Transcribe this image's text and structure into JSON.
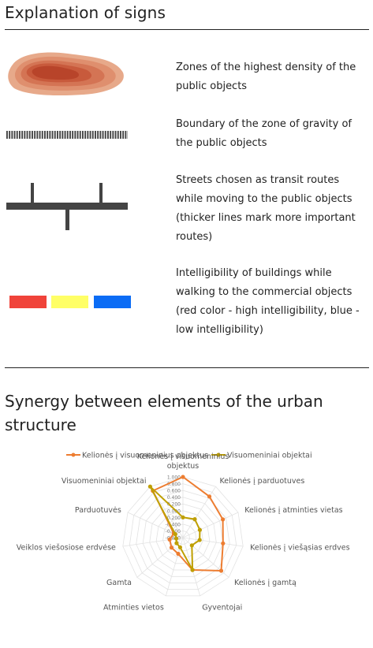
{
  "section1": {
    "title": "Explanation of signs",
    "items": [
      {
        "text": "Zones of the highest density of the public objects"
      },
      {
        "text": "Boundary of the zone of gravity of the public objects"
      },
      {
        "text": "Streets chosen as transit routes while moving to the public objects (thicker lines mark more important routes)"
      },
      {
        "text": "Intelligibility of buildings while walking to the commercial objects (red color - high intelligibility, blue - low intelligibility)"
      }
    ],
    "swatch_colors": [
      "#f0433a",
      "#ffff66",
      "#0b6cf5"
    ],
    "density_colors": [
      "#e7a98a",
      "#df8f6e",
      "#d47454",
      "#c85a3c",
      "#b8442a"
    ]
  },
  "section2": {
    "title": "Synergy between elements of the urban structure"
  },
  "chart_data": {
    "type": "radar",
    "categories": [
      "Kelionės į visuomeninius objektus",
      "Kelionės į parduotuves",
      "Kelionės į atminties vietas",
      "Kelionės į viešąsias erdves",
      "Kelionės į gamtą",
      "Gyventojai",
      "Atminties vietos",
      "Gamta",
      "Veiklos viešosiose erdvėse",
      "Parduotuvės",
      "Visuomeniniai objektai"
    ],
    "category_lines": [
      [
        "Kelionės į visuomeninius",
        "objektus"
      ],
      [
        "Kelionės į parduotuves"
      ],
      [
        "Kelionės į atminties vietas"
      ],
      [
        "Kelionės į viešąsias erdves"
      ],
      [
        "Kelionės į gamtą"
      ],
      [
        "Gyventojai"
      ],
      [
        "Atminties vietos"
      ],
      [
        "Gamta"
      ],
      [
        "Veiklos viešosiose erdvėse"
      ],
      [
        "Parduotuvės"
      ],
      [
        "Visuomeniniai objektai"
      ]
    ],
    "series": [
      {
        "name": "Kelionės į visuomeninius objektus",
        "color": "#ed7d31",
        "values": [
          1.0,
          0.65,
          0.5,
          0.4,
          0.7,
          0.2,
          -0.3,
          -0.35,
          -0.4,
          -0.5,
          0.85
        ]
      },
      {
        "name": "Visuomeniniai objektai",
        "color": "#bf9f00",
        "values": [
          -0.2,
          -0.15,
          -0.25,
          -0.3,
          -0.45,
          0.2,
          -0.5,
          -0.55,
          -0.6,
          -0.55,
          1.0
        ]
      }
    ],
    "rlim": [
      -0.8,
      1.0
    ],
    "ticks": [
      "1.000",
      "0.800",
      "0.600",
      "0.400",
      "0.200",
      "0.000",
      "-0.200",
      "-0.400",
      "-0.600",
      "-0.800"
    ],
    "tick_values": [
      1.0,
      0.8,
      0.6,
      0.4,
      0.2,
      0.0,
      -0.2,
      -0.4,
      -0.6,
      -0.8
    ],
    "legend_position": "top"
  }
}
